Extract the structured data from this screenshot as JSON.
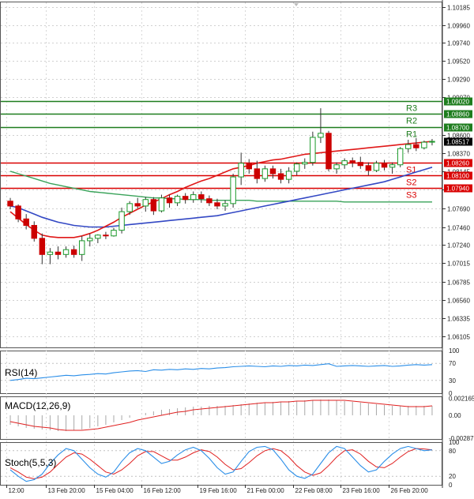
{
  "chart_data": {
    "type": "candlestick",
    "main": {
      "ylim": [
        1.0597,
        1.1025
      ],
      "y_ticks": [
        "1.10185",
        "1.09960",
        "1.09740",
        "1.09520",
        "1.09290",
        "1.09070",
        "1.08600",
        "1.08370",
        "1.08145",
        "1.07920",
        "1.07690",
        "1.07460",
        "1.07240",
        "1.07015",
        "1.06785",
        "1.06560",
        "1.06335",
        "1.06105"
      ],
      "x_ticks": [
        "12:00",
        "13 Feb 20:00",
        "15 Feb 04:00",
        "16 Feb 12:00",
        "19 Feb 16:00",
        "21 Feb 00:00",
        "22 Feb 08:00",
        "23 Feb 16:00",
        "26 Feb 20:00"
      ],
      "last_price": {
        "label": "1.08517",
        "value": 1.08517
      },
      "levels": [
        {
          "name": "R3",
          "label": "1.09020",
          "value": 1.0902,
          "color": "#1e7d1e"
        },
        {
          "name": "R2",
          "label": "1.08860",
          "value": 1.0886,
          "color": "#1e7d1e"
        },
        {
          "name": "R1",
          "label": "1.08700",
          "value": 1.087,
          "color": "#1e7d1e"
        },
        {
          "name": "S1",
          "label": "1.08260",
          "value": 1.0826,
          "color": "#d90000"
        },
        {
          "name": "S2",
          "label": "1.08100",
          "value": 1.081,
          "color": "#d90000"
        },
        {
          "name": "S3",
          "label": "1.07940",
          "value": 1.0794,
          "color": "#d90000"
        }
      ],
      "candles": [
        [
          1.0778,
          1.0782,
          1.0768,
          1.0772
        ],
        [
          1.0772,
          1.0774,
          1.0752,
          1.0756
        ],
        [
          1.0756,
          1.0762,
          1.0743,
          1.0748
        ],
        [
          1.0748,
          1.0753,
          1.0728,
          1.0732
        ],
        [
          1.0732,
          1.0738,
          1.07,
          1.0712
        ],
        [
          1.0712,
          1.072,
          1.07,
          1.0715
        ],
        [
          1.0715,
          1.0722,
          1.0706,
          1.0712
        ],
        [
          1.0712,
          1.0722,
          1.0708,
          1.0718
        ],
        [
          1.0718,
          1.0723,
          1.0708,
          1.0712
        ],
        [
          1.0712,
          1.0735,
          1.0704,
          1.0729
        ],
        [
          1.0729,
          1.0738,
          1.0722,
          1.0732
        ],
        [
          1.0732,
          1.0737,
          1.0726,
          1.0736
        ],
        [
          1.0736,
          1.074,
          1.0731,
          1.0735
        ],
        [
          1.0735,
          1.0745,
          1.0734,
          1.0742
        ],
        [
          1.0742,
          1.077,
          1.0738,
          1.0765
        ],
        [
          1.0765,
          1.0778,
          1.0761,
          1.0775
        ],
        [
          1.0775,
          1.0782,
          1.0769,
          1.0772
        ],
        [
          1.0772,
          1.0783,
          1.0765,
          1.078
        ],
        [
          1.078,
          1.0783,
          1.0761,
          1.0766
        ],
        [
          1.0766,
          1.0786,
          1.0764,
          1.0782
        ],
        [
          1.0782,
          1.0786,
          1.077,
          1.0776
        ],
        [
          1.0776,
          1.0786,
          1.0772,
          1.0784
        ],
        [
          1.0784,
          1.0788,
          1.0775,
          1.078
        ],
        [
          1.078,
          1.079,
          1.0776,
          1.0786
        ],
        [
          1.0786,
          1.079,
          1.0776,
          1.0781
        ],
        [
          1.0781,
          1.0785,
          1.0772,
          1.0776
        ],
        [
          1.0776,
          1.0781,
          1.0768,
          1.0772
        ],
        [
          1.0772,
          1.0779,
          1.0766,
          1.0775
        ],
        [
          1.0775,
          1.0812,
          1.077,
          1.0808
        ],
        [
          1.0808,
          1.0838,
          1.0798,
          1.0825
        ],
        [
          1.0825,
          1.083,
          1.0812,
          1.0818
        ],
        [
          1.0818,
          1.0828,
          1.08,
          1.0806
        ],
        [
          1.0806,
          1.0822,
          1.0802,
          1.0818
        ],
        [
          1.0818,
          1.0822,
          1.0806,
          1.0812
        ],
        [
          1.0812,
          1.0818,
          1.08,
          1.0805
        ],
        [
          1.0805,
          1.082,
          1.08,
          1.0815
        ],
        [
          1.0815,
          1.0826,
          1.081,
          1.0824
        ],
        [
          1.0824,
          1.0831,
          1.0818,
          1.0826
        ],
        [
          1.0826,
          1.0864,
          1.0822,
          1.0857
        ],
        [
          1.0857,
          1.0893,
          1.085,
          1.0862
        ],
        [
          1.0862,
          1.0865,
          1.0815,
          1.0818
        ],
        [
          1.0818,
          1.0826,
          1.0812,
          1.0823
        ],
        [
          1.0823,
          1.0831,
          1.0818,
          1.0828
        ],
        [
          1.0828,
          1.0832,
          1.082,
          1.0826
        ],
        [
          1.0826,
          1.0833,
          1.0818,
          1.0822
        ],
        [
          1.0822,
          1.0826,
          1.081,
          1.0816
        ],
        [
          1.0816,
          1.0828,
          1.0814,
          1.0825
        ],
        [
          1.0825,
          1.0829,
          1.0816,
          1.082
        ],
        [
          1.082,
          1.0826,
          1.0812,
          1.0823
        ],
        [
          1.0823,
          1.0845,
          1.082,
          1.0843
        ],
        [
          1.0843,
          1.0854,
          1.0838,
          1.0848
        ],
        [
          1.0848,
          1.0856,
          1.084,
          1.0844
        ],
        [
          1.0844,
          1.0853,
          1.0842,
          1.0851
        ],
        [
          1.0851,
          1.0855,
          1.0847,
          1.0852
        ]
      ],
      "ma_red": [
        1.0765,
        1.0757,
        1.0749,
        1.0742,
        1.0736,
        1.0734,
        1.0733,
        1.0733,
        1.0733,
        1.0735,
        1.0738,
        1.0742,
        1.0747,
        1.0752,
        1.0758,
        1.0763,
        1.0768,
        1.0773,
        1.0777,
        1.0781,
        1.0786,
        1.079,
        1.0795,
        1.0799,
        1.0803,
        1.0806,
        1.081,
        1.0814,
        1.0818,
        1.082,
        1.0822,
        1.0825,
        1.0827,
        1.0829,
        1.083,
        1.0832,
        1.0834,
        1.0836,
        1.0837,
        1.0838,
        1.0839,
        1.084,
        1.0841,
        1.0842,
        1.0843,
        1.0844,
        1.0845,
        1.0846,
        1.0847,
        1.0848,
        1.0849,
        1.085,
        1.0851,
        1.0852
      ],
      "ma_blue": [
        1.0772,
        1.077,
        1.0766,
        1.0762,
        1.0758,
        1.0755,
        1.0752,
        1.075,
        1.0748,
        1.0747,
        1.0746,
        1.0746,
        1.0746,
        1.0747,
        1.0748,
        1.0749,
        1.075,
        1.0751,
        1.0752,
        1.0753,
        1.0754,
        1.0755,
        1.0756,
        1.0757,
        1.0758,
        1.0759,
        1.076,
        1.0762,
        1.0764,
        1.0766,
        1.0768,
        1.077,
        1.0772,
        1.0774,
        1.0776,
        1.0778,
        1.078,
        1.0782,
        1.0784,
        1.0786,
        1.0788,
        1.079,
        1.0792,
        1.0794,
        1.0796,
        1.0798,
        1.08,
        1.0802,
        1.0805,
        1.0808,
        1.0811,
        1.0814,
        1.0817,
        1.082
      ],
      "ma_green": [
        1.0815,
        1.0812,
        1.0809,
        1.0806,
        1.0803,
        1.08,
        1.0798,
        1.0796,
        1.0794,
        1.0792,
        1.079,
        1.0789,
        1.0788,
        1.0787,
        1.0786,
        1.0785,
        1.0784,
        1.0783,
        1.0782,
        1.0782,
        1.0781,
        1.0781,
        1.078,
        1.078,
        1.078,
        1.0779,
        1.0779,
        1.0779,
        1.0779,
        1.0779,
        1.0779,
        1.0778,
        1.0778,
        1.0778,
        1.0778,
        1.0778,
        1.0778,
        1.0778,
        1.0778,
        1.0778,
        1.0778,
        1.0778,
        1.0777,
        1.0777,
        1.0777,
        1.0777,
        1.0777,
        1.0777,
        1.0777,
        1.0777,
        1.0777,
        1.0777,
        1.0777,
        1.0777
      ]
    },
    "rsi": {
      "label": "RSI(14)",
      "ylim": [
        0,
        100
      ],
      "ticks": [
        "100",
        "70",
        "30",
        "0"
      ],
      "values": [
        30,
        32,
        35,
        34,
        36,
        38,
        40,
        42,
        41,
        43,
        44,
        46,
        45,
        48,
        50,
        52,
        53,
        51,
        55,
        54,
        56,
        55,
        57,
        56,
        58,
        57,
        59,
        60,
        62,
        63,
        64,
        63,
        62,
        64,
        63,
        65,
        64,
        66,
        65,
        67,
        69,
        63,
        64,
        65,
        64,
        63,
        64,
        65,
        63,
        64,
        66,
        67,
        66,
        67
      ]
    },
    "macd": {
      "label": "MACD(12,26,9)",
      "ylim": [
        -0.003,
        0.0024
      ],
      "ticks": [
        "0.002165",
        "0.00",
        "-0.002879"
      ],
      "histogram": [
        -0.0012,
        -0.0014,
        -0.0016,
        -0.0017,
        -0.0018,
        -0.0019,
        -0.002,
        -0.002,
        -0.0019,
        -0.0018,
        -0.0016,
        -0.0014,
        -0.0012,
        -0.0009,
        -0.0006,
        -0.0003,
        0.0,
        0.0003,
        0.0005,
        0.0007,
        0.0008,
        0.0009,
        0.001,
        0.0011,
        0.0011,
        0.0012,
        0.0012,
        0.0012,
        0.0013,
        0.0014,
        0.0015,
        0.0016,
        0.0016,
        0.0017,
        0.0017,
        0.0018,
        0.0018,
        0.0019,
        0.0019,
        0.002,
        0.002,
        0.0019,
        0.0018,
        0.0017,
        0.0016,
        0.0015,
        0.0014,
        0.0013,
        0.0012,
        0.0012,
        0.0012,
        0.0012,
        0.0012,
        0.0012
      ],
      "signal": [
        -0.0008,
        -0.001,
        -0.0012,
        -0.0014,
        -0.0015,
        -0.0016,
        -0.0018,
        -0.0019,
        -0.0019,
        -0.0019,
        -0.0018,
        -0.0017,
        -0.0015,
        -0.0013,
        -0.0011,
        -0.0009,
        -0.0006,
        -0.0004,
        -0.0002,
        0.0,
        0.0002,
        0.0004,
        0.0005,
        0.0007,
        0.0008,
        0.0009,
        0.001,
        0.0011,
        0.0012,
        0.0013,
        0.0014,
        0.0015,
        0.0016,
        0.0016,
        0.0017,
        0.0017,
        0.0018,
        0.0018,
        0.0019,
        0.0019,
        0.0019,
        0.0019,
        0.0019,
        0.0018,
        0.0017,
        0.0016,
        0.0015,
        0.0014,
        0.0013,
        0.0012,
        0.0011,
        0.0011,
        0.0011,
        0.0012
      ]
    },
    "stoch": {
      "label": "Stoch(5,5,3)",
      "ylim": [
        0,
        100
      ],
      "ticks": [
        "100",
        "80",
        "20",
        "0"
      ],
      "k": [
        35,
        20,
        8,
        12,
        25,
        50,
        70,
        85,
        80,
        60,
        40,
        25,
        18,
        30,
        55,
        75,
        85,
        80,
        65,
        50,
        55,
        70,
        82,
        88,
        80,
        62,
        40,
        25,
        30,
        55,
        78,
        88,
        90,
        82,
        60,
        35,
        20,
        15,
        25,
        50,
        75,
        90,
        85,
        65,
        45,
        30,
        35,
        55,
        72,
        85,
        90,
        85,
        80,
        82
      ],
      "d": [
        40,
        30,
        18,
        14,
        18,
        30,
        48,
        65,
        75,
        72,
        60,
        45,
        30,
        25,
        35,
        50,
        68,
        78,
        78,
        68,
        58,
        58,
        65,
        75,
        82,
        78,
        65,
        48,
        35,
        38,
        52,
        68,
        80,
        85,
        80,
        65,
        45,
        30,
        22,
        28,
        45,
        65,
        80,
        82,
        72,
        55,
        42,
        40,
        50,
        65,
        78,
        85,
        84,
        82
      ]
    }
  }
}
